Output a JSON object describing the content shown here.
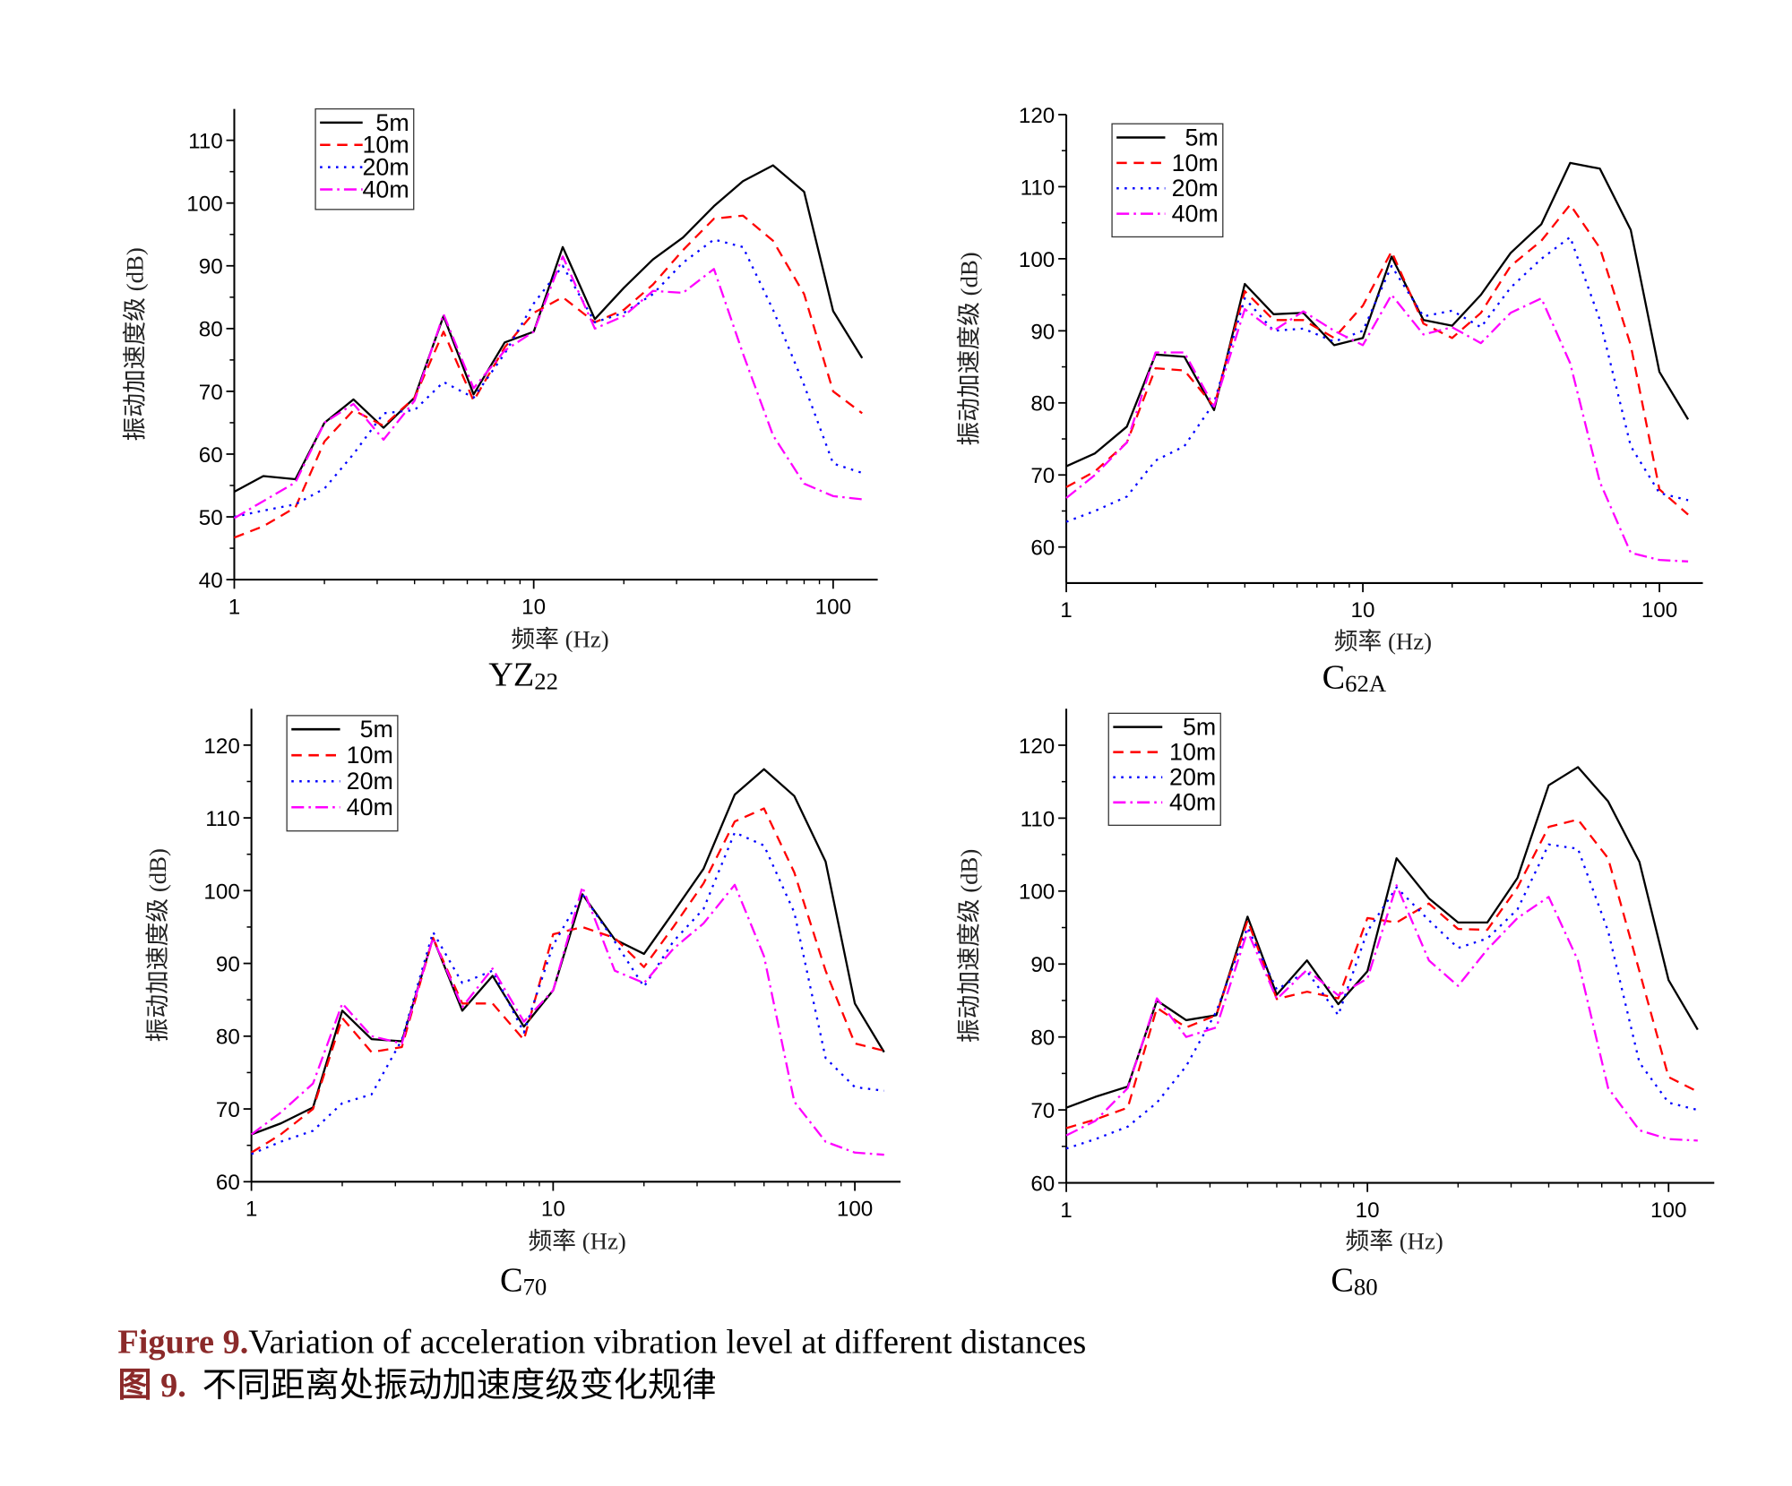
{
  "caption": {
    "en_label": "Figure 9.",
    "en_text": "Variation of acceleration vibration level at different distances",
    "zh_label": "图 9.",
    "zh_text": "不同距离处振动加速度级变化规律"
  },
  "colors": {
    "5m": "#000000",
    "10m": "#ff0000",
    "20m": "#0000ff",
    "40m": "#ff00ff"
  },
  "chart_data": [
    {
      "type": "line",
      "title": {
        "main": "YZ",
        "sub": "22"
      },
      "xlabel": "频率 (Hz)",
      "ylabel": "振动加速度级 (dB)",
      "xscale": "log",
      "xlim": [
        1,
        141
      ],
      "ylim": [
        40,
        115
      ],
      "xticks": [
        1,
        10,
        100
      ],
      "xtick_labels": [
        "1",
        "10",
        "100"
      ],
      "yticks": [
        40,
        50,
        60,
        70,
        80,
        90,
        100,
        110
      ],
      "ytick_labels": [
        "40",
        "50",
        "60",
        "70",
        "80",
        "90",
        "100",
        "110"
      ],
      "legend": "top-left",
      "x": [
        1,
        1.25,
        1.6,
        2,
        2.5,
        3.15,
        4,
        5,
        6.3,
        8,
        10,
        12.5,
        16,
        20,
        25,
        31.5,
        40,
        50,
        63,
        80,
        100,
        125
      ],
      "series": [
        {
          "name": "5m",
          "style": "solid",
          "values": [
            54,
            56.5,
            56,
            65,
            68.7,
            64.2,
            69,
            82,
            69.5,
            77.8,
            79.5,
            93,
            81.5,
            86.5,
            91,
            94.5,
            99.5,
            103.5,
            106,
            101.8,
            82.8,
            75.3
          ]
        },
        {
          "name": "10m",
          "style": "dash",
          "values": [
            46.7,
            48.5,
            51.5,
            62,
            67,
            64.5,
            69,
            79.5,
            68.5,
            77,
            82.5,
            85,
            81,
            83,
            87,
            92.5,
            97.5,
            98,
            94,
            85.5,
            70,
            66.5
          ]
        },
        {
          "name": "20m",
          "style": "dot",
          "values": [
            50,
            51,
            52,
            54.5,
            60,
            66.5,
            67,
            71.5,
            69,
            76,
            84,
            90,
            81,
            82.5,
            85.5,
            90.5,
            94.2,
            93,
            83,
            71,
            58.5,
            57
          ]
        },
        {
          "name": "40m",
          "style": "dashdot",
          "values": [
            49.8,
            52.5,
            55.5,
            65,
            68,
            62.3,
            68.5,
            82.3,
            70.5,
            76.5,
            79.5,
            91.5,
            80,
            82,
            86,
            85.7,
            89.5,
            76,
            63,
            55.3,
            53.3,
            52.8
          ]
        }
      ]
    },
    {
      "type": "line",
      "title": {
        "main": "C",
        "sub": "62A"
      },
      "xlabel": "频率 (Hz)",
      "ylabel": "振动加速度级 (dB)",
      "xscale": "log",
      "xlim": [
        1,
        140
      ],
      "ylim": [
        55,
        120
      ],
      "xticks": [
        1,
        10,
        100
      ],
      "xtick_labels": [
        "1",
        "10",
        "100"
      ],
      "yticks": [
        60,
        70,
        80,
        90,
        100,
        110,
        120
      ],
      "ytick_labels": [
        "60",
        "70",
        "80",
        "90",
        "100",
        "110",
        "120"
      ],
      "legend": "top-left",
      "x": [
        1,
        1.25,
        1.6,
        2,
        2.5,
        3.15,
        4,
        5,
        6.3,
        8,
        10,
        12.5,
        16,
        20,
        25,
        31.5,
        40,
        50,
        63,
        80,
        100,
        125
      ],
      "series": [
        {
          "name": "5m",
          "style": "solid",
          "values": [
            71.2,
            73,
            76.7,
            86.7,
            86.4,
            79,
            96.5,
            92.3,
            92.5,
            88,
            89,
            100.3,
            91.5,
            90.7,
            95,
            100.8,
            104.8,
            113.3,
            112.5,
            104,
            84.3,
            77.7
          ]
        },
        {
          "name": "10m",
          "style": "dash",
          "values": [
            68.3,
            70.5,
            74.5,
            84.8,
            84.5,
            79.5,
            95.5,
            91.5,
            91.5,
            89,
            93.5,
            101,
            91,
            89,
            92.5,
            99,
            102.5,
            107.5,
            101.5,
            88,
            68,
            64.5
          ]
        },
        {
          "name": "20m",
          "style": "dot",
          "values": [
            63.5,
            65,
            67,
            72,
            74,
            80,
            94.5,
            90,
            90.3,
            88.5,
            90,
            99,
            92,
            92.8,
            90.5,
            96,
            100,
            103,
            91.5,
            74,
            67.5,
            66.5
          ]
        },
        {
          "name": "40m",
          "style": "dashdot",
          "values": [
            66.8,
            70,
            74.5,
            87,
            87,
            79.5,
            93,
            90,
            92.7,
            90,
            88,
            95,
            89.5,
            90.5,
            88.3,
            92.5,
            94.5,
            85.5,
            69,
            59.2,
            58.2,
            58
          ]
        }
      ]
    },
    {
      "type": "line",
      "title": {
        "main": "C",
        "sub": "70"
      },
      "xlabel": "频率 (Hz)",
      "ylabel": "振动加速度级 (dB)",
      "xscale": "log",
      "xlim": [
        1,
        141
      ],
      "ylim": [
        60,
        125
      ],
      "xticks": [
        1,
        10,
        100
      ],
      "xtick_labels": [
        "1",
        "10",
        "100"
      ],
      "yticks": [
        60,
        70,
        80,
        90,
        100,
        110,
        120
      ],
      "ytick_labels": [
        "60",
        "70",
        "80",
        "90",
        "100",
        "110",
        "120"
      ],
      "legend": "top-left",
      "x": [
        1,
        1.25,
        1.6,
        2,
        2.5,
        3.15,
        4,
        5,
        6.3,
        8,
        10,
        12.5,
        16,
        20,
        25,
        31.5,
        40,
        50,
        63,
        80,
        100,
        125
      ],
      "series": [
        {
          "name": "5m",
          "style": "solid",
          "values": [
            66.5,
            68,
            70.2,
            83.5,
            79.6,
            79.3,
            93.5,
            83.5,
            88.3,
            81.3,
            86.3,
            99.5,
            93.3,
            91.3,
            97,
            103,
            113.2,
            116.7,
            113,
            104,
            84.5,
            77.8
          ]
        },
        {
          "name": "10m",
          "style": "dash",
          "values": [
            64,
            66.5,
            70,
            82.5,
            77.8,
            78.5,
            93.5,
            84.5,
            84.5,
            79.5,
            94,
            95,
            93.5,
            89.5,
            95,
            101,
            109.5,
            111.3,
            102.5,
            89,
            79,
            78
          ]
        },
        {
          "name": "20m",
          "style": "dot",
          "values": [
            63.8,
            65.5,
            67,
            70.8,
            72,
            79.5,
            94.3,
            87.3,
            89,
            80.5,
            92.5,
            99.5,
            93,
            86.8,
            93,
            97.5,
            108,
            106.2,
            97,
            77,
            73,
            72.5
          ]
        },
        {
          "name": "40m",
          "style": "dashdot",
          "values": [
            66.5,
            69.5,
            73.5,
            84.5,
            80,
            79,
            93.5,
            84,
            89.3,
            82,
            86.3,
            100.5,
            89,
            87.3,
            92,
            95.5,
            100.8,
            91,
            71,
            65.5,
            64,
            63.7
          ]
        }
      ]
    },
    {
      "type": "line",
      "title": {
        "main": "C",
        "sub": "80"
      },
      "xlabel": "频率 (Hz)",
      "ylabel": "振动加速度级 (dB)",
      "xscale": "log",
      "xlim": [
        1,
        141
      ],
      "ylim": [
        60,
        125
      ],
      "xticks": [
        1,
        10,
        100
      ],
      "xtick_labels": [
        "1",
        "10",
        "100"
      ],
      "yticks": [
        60,
        70,
        80,
        90,
        100,
        110,
        120
      ],
      "ytick_labels": [
        "60",
        "70",
        "80",
        "90",
        "100",
        "110",
        "120"
      ],
      "legend": "top-left",
      "x": [
        1,
        1.25,
        1.6,
        2,
        2.5,
        3.15,
        4,
        5,
        6.3,
        8,
        10,
        12.5,
        16,
        20,
        25,
        31.5,
        40,
        50,
        63,
        80,
        100,
        125
      ],
      "series": [
        {
          "name": "5m",
          "style": "solid",
          "values": [
            70.3,
            71.8,
            73.2,
            85,
            82.3,
            83,
            96.5,
            85.8,
            90.5,
            84.5,
            89,
            104.5,
            99,
            95.7,
            95.7,
            101.8,
            114.5,
            117,
            112.3,
            104,
            87.8,
            81
          ]
        },
        {
          "name": "10m",
          "style": "dash",
          "values": [
            67.5,
            68.7,
            70.3,
            84,
            81.3,
            83,
            96,
            85.2,
            86.2,
            85.3,
            96.3,
            95.7,
            98.3,
            94.8,
            94.7,
            100.5,
            108.8,
            109.8,
            104.5,
            89,
            74.5,
            72.5
          ]
        },
        {
          "name": "20m",
          "style": "dot",
          "values": [
            64.7,
            66,
            67.7,
            71,
            76,
            83.5,
            95,
            86.5,
            89,
            83,
            94.5,
            100.5,
            96,
            92.2,
            93.5,
            97.5,
            106.4,
            105.8,
            94.5,
            76.5,
            71,
            70
          ]
        },
        {
          "name": "40m",
          "style": "dashdot",
          "values": [
            66.5,
            68.5,
            73,
            85.3,
            80,
            81.3,
            94.5,
            85.2,
            89.2,
            85.7,
            88,
            100.8,
            90.5,
            87,
            92,
            96.3,
            99.2,
            90.5,
            73,
            67.2,
            66,
            65.8
          ]
        }
      ]
    }
  ]
}
